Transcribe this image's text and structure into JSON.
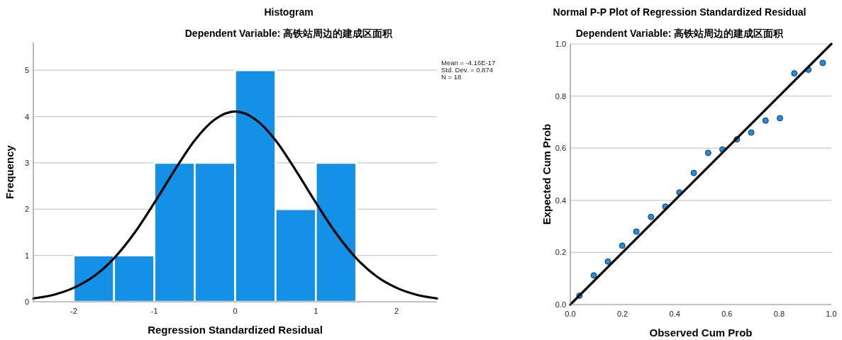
{
  "chart_data": [
    {
      "type": "histogram",
      "title": "Histogram",
      "subtitle": "Dependent Variable: 高铁站周边的建成区面积",
      "xlabel": "Regression Standardized Residual",
      "ylabel": "Frequency",
      "bins": [
        -2,
        -1.5,
        -1,
        -0.5,
        0,
        0.5,
        1,
        1.5
      ],
      "values": [
        1,
        1,
        3,
        3,
        5,
        2,
        3
      ],
      "color": "#1490e6",
      "series": [
        {
          "type": "line",
          "color": "#000000",
          "x": [
            -2.5,
            -2.25,
            -2,
            -1.75,
            -1.5,
            -1.25,
            -1,
            -0.75,
            -0.5,
            -0.25,
            0,
            0.25,
            0.5,
            0.75,
            1,
            1.25,
            1.5,
            1.75,
            2,
            2.25,
            2.5
          ],
          "values": [
            0.07,
            0.15,
            0.3,
            0.55,
            0.94,
            1.48,
            2.14,
            2.84,
            3.49,
            3.94,
            4.11,
            3.94,
            3.49,
            2.84,
            2.14,
            1.48,
            0.94,
            0.55,
            0.3,
            0.15,
            0.07
          ]
        }
      ],
      "xlim": [
        -2.5,
        2.5
      ],
      "ylim": [
        0,
        5.6
      ],
      "xticks": [
        -2,
        -1,
        0,
        1,
        2
      ],
      "yticks": [
        0,
        1,
        2,
        3,
        4,
        5
      ],
      "grid": "y",
      "annotations": [
        "Mean = -4.16E-17",
        "Std. Dev. = 0.874",
        "N = 18"
      ]
    },
    {
      "type": "scatter",
      "title": "Normal P-P Plot of Regression Standardized Residual",
      "subtitle": "Dependent Variable: 高铁站周边的建成区面积",
      "xlabel": "Observed Cum Prob",
      "ylabel": "Expected Cum Prob",
      "series": [
        {
          "type": "scatter",
          "marker": "circle",
          "color": "#1a8fe3",
          "x": [
            0.035,
            0.09,
            0.144,
            0.199,
            0.253,
            0.309,
            0.364,
            0.418,
            0.473,
            0.528,
            0.583,
            0.638,
            0.693,
            0.748,
            0.803,
            0.858,
            0.912,
            0.967
          ],
          "values": [
            0.034,
            0.112,
            0.165,
            0.226,
            0.28,
            0.336,
            0.376,
            0.43,
            0.505,
            0.582,
            0.595,
            0.634,
            0.66,
            0.706,
            0.715,
            0.887,
            0.901,
            0.927
          ]
        },
        {
          "type": "line",
          "color": "#000000",
          "x": [
            0,
            1
          ],
          "values": [
            0,
            1
          ]
        }
      ],
      "xlim": [
        0,
        1
      ],
      "ylim": [
        0,
        1
      ],
      "grid": "y",
      "xticks": [
        {
          "value": 0,
          "label": "0.0"
        },
        {
          "value": 0.2,
          "label": "0.2"
        },
        {
          "value": 0.4,
          "label": "0.4"
        },
        {
          "value": 0.6,
          "label": "0.6"
        },
        {
          "value": 0.8,
          "label": "0.8"
        },
        {
          "value": 1,
          "label": "1.0"
        }
      ],
      "yticks": [
        {
          "value": 0,
          "label": "0.0"
        },
        {
          "value": 0.2,
          "label": "0.2"
        },
        {
          "value": 0.4,
          "label": "0.4"
        },
        {
          "value": 0.6,
          "label": "0.6"
        },
        {
          "value": 0.8,
          "label": "0.8"
        },
        {
          "value": 1,
          "label": "1.0"
        }
      ]
    }
  ]
}
